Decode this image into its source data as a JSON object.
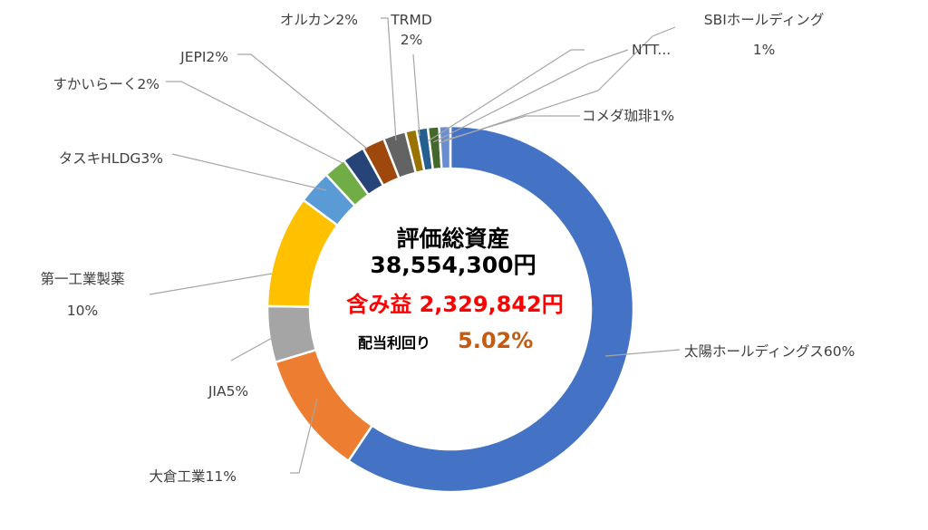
{
  "chart_data": {
    "type": "donut",
    "center": {
      "title": "評価総資産",
      "total": "38,554,300円",
      "gain": "含み益 2,329,842円",
      "yield_label": "配当利回り",
      "yield_value": "5.02%"
    },
    "slices": [
      {
        "name": "太陽ホールディングス",
        "value": 60,
        "label": [
          "太陽ホールディングス60%"
        ],
        "color": "#4472c4"
      },
      {
        "name": "大倉工業",
        "value": 11,
        "label": [
          "大倉工業11%"
        ],
        "color": "#ed7d31"
      },
      {
        "name": "JIA",
        "value": 5,
        "label": [
          "JIA5%"
        ],
        "color": "#a5a5a5"
      },
      {
        "name": "第一工業製薬",
        "value": 10,
        "label": [
          "第一工業製薬",
          "10%"
        ],
        "color": "#ffc000"
      },
      {
        "name": "タスキHLDG",
        "value": 3,
        "label": [
          "タスキHLDG3%"
        ],
        "color": "#5b9bd5"
      },
      {
        "name": "すかいらーく",
        "value": 2,
        "label": [
          "すかいらーく2%"
        ],
        "color": "#70ad47"
      },
      {
        "name": "JEPI",
        "value": 2,
        "label": [
          "JEPI2%"
        ],
        "color": "#264478"
      },
      {
        "name": "オルカン",
        "value": 2,
        "label": [
          "オルカン2%"
        ],
        "color": "#9e480e"
      },
      {
        "name": "TRMD",
        "value": 2,
        "label": [
          "TRMD",
          "2%"
        ],
        "color": "#636363"
      },
      {
        "name": "",
        "value": 1,
        "label": [],
        "color": "#997300"
      },
      {
        "name": "NTT",
        "value": 1,
        "label": [
          "NTT..."
        ],
        "color": "#255e91"
      },
      {
        "name": "SBIホールディング",
        "value": 1,
        "label": [
          "SBIホールディング",
          "1%"
        ],
        "color": "#43682b"
      },
      {
        "name": "コメダ珈琲",
        "value": 1,
        "label": [
          "コメダ珈琲1%"
        ],
        "color": "#698ed0"
      }
    ],
    "legend": "none"
  }
}
